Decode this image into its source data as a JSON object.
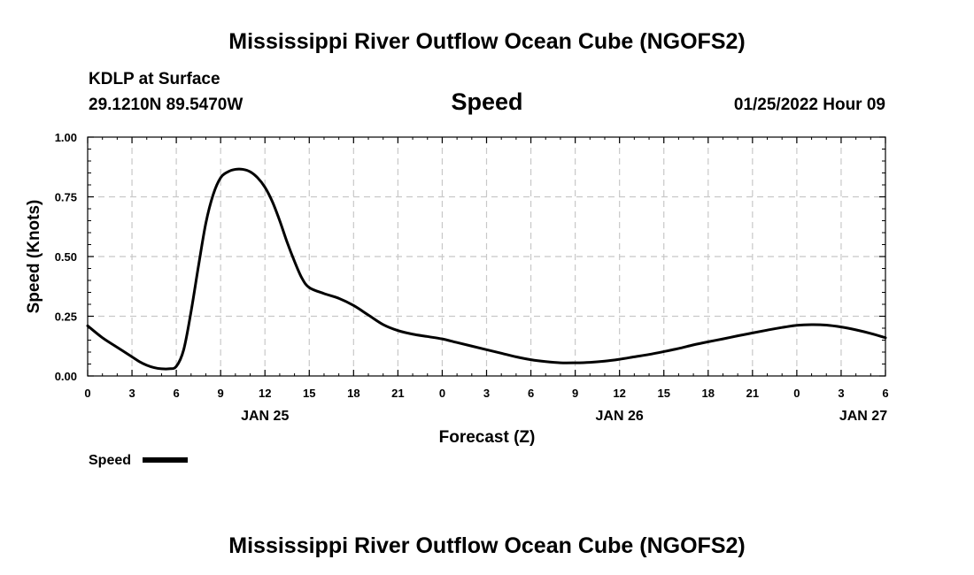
{
  "chart_data": {
    "type": "line",
    "title": "Mississippi River Outflow Ocean Cube (NGOFS2)",
    "footer_title": "Mississippi River Outflow Ocean Cube (NGOFS2)",
    "station": "KDLP at Surface",
    "location": "29.1210N  89.5470W",
    "subtitle": "Speed",
    "datetime": "01/25/2022 Hour 09",
    "xlabel": "Forecast (Z)",
    "ylabel": "Speed (Knots)",
    "xlim": [
      0,
      54
    ],
    "ylim": [
      0,
      1
    ],
    "x_ticks": [
      0,
      3,
      6,
      9,
      12,
      15,
      18,
      21,
      24,
      27,
      30,
      33,
      36,
      39,
      42,
      45,
      48,
      51,
      54
    ],
    "x_tick_labels": [
      "0",
      "3",
      "6",
      "9",
      "12",
      "15",
      "18",
      "21",
      "0",
      "3",
      "6",
      "9",
      "12",
      "15",
      "18",
      "21",
      "0",
      "3",
      "6"
    ],
    "day_labels": [
      {
        "x": 12,
        "label": "JAN 25"
      },
      {
        "x": 36,
        "label": "JAN 26"
      },
      {
        "x": 52.5,
        "label": "JAN 27"
      }
    ],
    "y_ticks": [
      0,
      0.25,
      0.5,
      0.75,
      1.0
    ],
    "y_tick_labels": [
      "0.00",
      "0.25",
      "0.50",
      "0.75",
      "1.00"
    ],
    "grid": true,
    "legend_position": "bottom-left",
    "series": [
      {
        "name": "Speed",
        "color": "#000000",
        "x": [
          0,
          1,
          2,
          3,
          3.5,
          4,
          4.5,
          5,
          5.5,
          6,
          6.5,
          7,
          7.5,
          8,
          8.5,
          9,
          9.5,
          10,
          10.5,
          11,
          11.5,
          12,
          12.5,
          13,
          13.5,
          14,
          14.5,
          15,
          16,
          17,
          18,
          19,
          20,
          21,
          22,
          23,
          24,
          25,
          26,
          27,
          28,
          29,
          30,
          31,
          32,
          33,
          34,
          35,
          36,
          37,
          38,
          39,
          40,
          41,
          42,
          43,
          44,
          45,
          46,
          47,
          48,
          49,
          50,
          51,
          52,
          53,
          54
        ],
        "values": [
          0.21,
          0.16,
          0.12,
          0.08,
          0.06,
          0.045,
          0.035,
          0.03,
          0.03,
          0.04,
          0.11,
          0.27,
          0.46,
          0.64,
          0.76,
          0.83,
          0.855,
          0.865,
          0.865,
          0.855,
          0.83,
          0.79,
          0.73,
          0.65,
          0.56,
          0.48,
          0.41,
          0.37,
          0.345,
          0.325,
          0.295,
          0.255,
          0.215,
          0.19,
          0.175,
          0.165,
          0.155,
          0.14,
          0.125,
          0.11,
          0.095,
          0.08,
          0.068,
          0.06,
          0.055,
          0.055,
          0.057,
          0.062,
          0.07,
          0.08,
          0.09,
          0.102,
          0.115,
          0.13,
          0.143,
          0.155,
          0.168,
          0.18,
          0.192,
          0.203,
          0.212,
          0.215,
          0.213,
          0.205,
          0.193,
          0.178,
          0.16
        ]
      }
    ]
  }
}
